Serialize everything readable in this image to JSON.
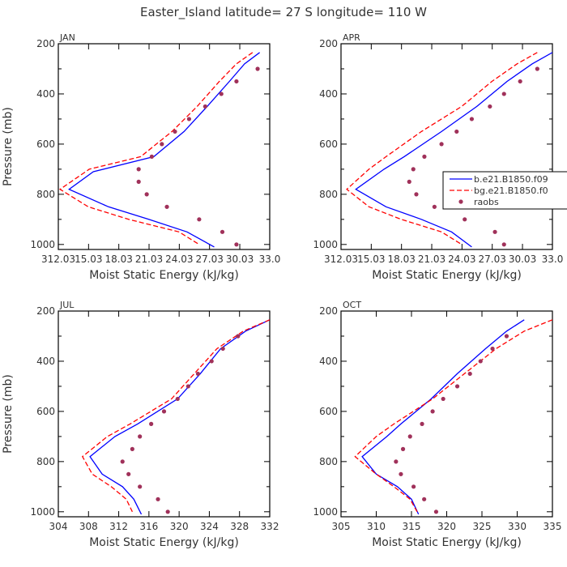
{
  "figure_title": "Easter_Island   latitude= 27 S longitude= 110 W",
  "colors": {
    "model": "#0000ff",
    "model_bg": "#ff0000",
    "obs": "#a0315a",
    "axis": "#000000",
    "text": "#333333"
  },
  "chart_data": [
    {
      "type": "line",
      "month": "JAN",
      "xlabel": "Moist Static Energy (kJ/kg)",
      "ylabel": "Pressure (mb)",
      "xlim": [
        312.03,
        333.0
      ],
      "ylim": [
        1020,
        200
      ],
      "xticks": [
        312.03,
        315.03,
        318.03,
        321.03,
        324.03,
        327.03,
        330.03,
        333.0
      ],
      "xtick_labels": [
        "312.03",
        "15.03",
        "18.03",
        "21.03",
        "24.03",
        "27.03",
        "30.03",
        "33.0"
      ],
      "yticks": [
        200,
        400,
        600,
        800,
        1000
      ],
      "ytick_labels": [
        "200",
        "400",
        "600",
        "800",
        "1000"
      ],
      "show_ylabel": true,
      "legend": null,
      "series": [
        {
          "name": "b.e21.B1850.f09",
          "style": "solid",
          "color": "#0000ff",
          "pressure": [
            235,
            280,
            350,
            450,
            550,
            650,
            710,
            780,
            850,
            900,
            950,
            1010
          ],
          "values": [
            332.0,
            330.5,
            329.0,
            326.8,
            324.5,
            321.5,
            315.5,
            313.1,
            317.0,
            321.0,
            324.8,
            327.5
          ]
        },
        {
          "name": "bg.e21.B1850.f0",
          "style": "dashed",
          "color": "#ff0000",
          "pressure": [
            235,
            280,
            350,
            450,
            550,
            650,
            700,
            780,
            850,
            900,
            950,
            1000
          ],
          "values": [
            331.3,
            329.7,
            328.0,
            325.8,
            323.3,
            320.2,
            315.1,
            312.2,
            315.0,
            319.0,
            324.0,
            326.0
          ]
        },
        {
          "name": "raobs",
          "style": "dots",
          "color": "#a0315a",
          "pressure": [
            300,
            350,
            400,
            450,
            500,
            550,
            600,
            650,
            700,
            750,
            800,
            850,
            900,
            950,
            1000
          ],
          "values": [
            331.8,
            329.7,
            328.2,
            326.6,
            325.0,
            323.6,
            322.3,
            321.3,
            320.0,
            320.0,
            320.8,
            322.8,
            326.0,
            328.3,
            329.7
          ]
        }
      ]
    },
    {
      "type": "line",
      "month": "APR",
      "xlabel": "Moist Static Energy (kJ/kg)",
      "ylabel": "",
      "xlim": [
        312.03,
        333.0
      ],
      "ylim": [
        1020,
        200
      ],
      "xticks": [
        312.03,
        315.03,
        318.03,
        321.03,
        324.03,
        327.03,
        330.03,
        333.0
      ],
      "xtick_labels": [
        "312.03",
        "15.03",
        "18.03",
        "21.03",
        "24.03",
        "27.03",
        "30.03",
        "33.0"
      ],
      "yticks": [
        200,
        400,
        600,
        800,
        1000
      ],
      "ytick_labels": [
        "200",
        "400",
        "600",
        "800",
        "1000"
      ],
      "show_ylabel": false,
      "legend": {
        "placement": "right",
        "entries": [
          "b.e21.B1850.f09",
          "bg.e21.B1850.f0",
          "raobs"
        ]
      },
      "series": [
        {
          "name": "b.e21.B1850.f09",
          "style": "solid",
          "color": "#0000ff",
          "pressure": [
            235,
            280,
            350,
            450,
            550,
            650,
            700,
            780,
            850,
            900,
            950,
            1010
          ],
          "values": [
            333.0,
            331.0,
            328.5,
            325.5,
            322.0,
            318.3,
            316.3,
            313.5,
            316.5,
            320.0,
            323.0,
            325.0
          ]
        },
        {
          "name": "bg.e21.B1850.f0",
          "style": "dashed",
          "color": "#ff0000",
          "pressure": [
            235,
            280,
            350,
            450,
            550,
            650,
            700,
            780,
            850,
            900,
            950,
            1000
          ],
          "values": [
            331.5,
            329.5,
            327.0,
            324.0,
            320.0,
            316.5,
            314.8,
            312.6,
            314.8,
            318.0,
            322.0,
            324.0
          ]
        },
        {
          "name": "raobs",
          "style": "dots",
          "color": "#a0315a",
          "pressure": [
            300,
            350,
            400,
            450,
            500,
            550,
            600,
            650,
            700,
            750,
            800,
            850,
            900,
            950,
            1000
          ],
          "values": [
            331.5,
            329.8,
            328.2,
            326.8,
            325.0,
            323.5,
            322.0,
            320.3,
            319.2,
            318.8,
            319.5,
            321.3,
            324.3,
            327.3,
            328.2
          ]
        }
      ]
    },
    {
      "type": "line",
      "month": "JUL",
      "xlabel": "Moist Static Energy (kJ/kg)",
      "ylabel": "Pressure (mb)",
      "xlim": [
        304,
        332
      ],
      "ylim": [
        1020,
        200
      ],
      "xticks": [
        304,
        308,
        312,
        316,
        320,
        324,
        328,
        332
      ],
      "xtick_labels": [
        "304",
        "308",
        "312",
        "316",
        "320",
        "324",
        "328",
        "332"
      ],
      "yticks": [
        200,
        400,
        600,
        800,
        1000
      ],
      "ytick_labels": [
        "200",
        "400",
        "600",
        "800",
        "1000"
      ],
      "show_ylabel": true,
      "legend": null,
      "series": [
        {
          "name": "b.e21.B1850.f09",
          "style": "solid",
          "color": "#0000ff",
          "pressure": [
            235,
            280,
            350,
            450,
            550,
            650,
            700,
            780,
            850,
            900,
            950,
            1010
          ],
          "values": [
            332.0,
            328.8,
            325.5,
            322.8,
            319.8,
            314.5,
            311.5,
            308.2,
            309.8,
            312.5,
            314.0,
            315.0
          ]
        },
        {
          "name": "bg.e21.B1850.f0",
          "style": "dashed",
          "color": "#ff0000",
          "pressure": [
            235,
            280,
            350,
            450,
            550,
            650,
            700,
            780,
            850,
            900,
            950,
            1000
          ],
          "values": [
            332.0,
            328.5,
            325.0,
            322.0,
            319.0,
            313.5,
            310.5,
            307.2,
            308.5,
            311.0,
            313.0,
            313.8
          ]
        },
        {
          "name": "raobs",
          "style": "dots",
          "color": "#a0315a",
          "pressure": [
            300,
            350,
            400,
            450,
            500,
            550,
            600,
            650,
            700,
            750,
            800,
            850,
            900,
            950,
            1000
          ],
          "values": [
            327.8,
            325.8,
            324.3,
            322.5,
            321.2,
            319.8,
            318.0,
            316.3,
            314.8,
            313.8,
            312.5,
            313.3,
            314.8,
            317.2,
            318.5
          ]
        }
      ]
    },
    {
      "type": "line",
      "month": "OCT",
      "xlabel": "Moist Static Energy (kJ/kg)",
      "ylabel": "",
      "xlim": [
        305,
        335
      ],
      "ylim": [
        1020,
        200
      ],
      "xticks": [
        305,
        310,
        315,
        320,
        325,
        330,
        335
      ],
      "xtick_labels": [
        "305",
        "310",
        "315",
        "320",
        "325",
        "330",
        "335"
      ],
      "yticks": [
        200,
        400,
        600,
        800,
        1000
      ],
      "ytick_labels": [
        "200",
        "400",
        "600",
        "800",
        "1000"
      ],
      "show_ylabel": false,
      "legend": null,
      "series": [
        {
          "name": "b.e21.B1850.f09",
          "style": "solid",
          "color": "#0000ff",
          "pressure": [
            235,
            280,
            350,
            450,
            550,
            650,
            700,
            780,
            850,
            900,
            950,
            1010
          ],
          "values": [
            331.0,
            328.5,
            325.5,
            321.5,
            317.8,
            313.5,
            311.5,
            308.0,
            310.0,
            313.0,
            315.0,
            316.0
          ]
        },
        {
          "name": "bg.e21.B1850.f0",
          "style": "dashed",
          "color": "#ff0000",
          "pressure": [
            235,
            280,
            350,
            450,
            550,
            650,
            700,
            780,
            850,
            900,
            950,
            1000
          ],
          "values": [
            335.0,
            331.0,
            327.0,
            322.5,
            318.0,
            312.5,
            310.0,
            307.0,
            310.0,
            312.5,
            314.8,
            315.8
          ]
        },
        {
          "name": "raobs",
          "style": "dots",
          "color": "#a0315a",
          "pressure": [
            300,
            350,
            400,
            450,
            500,
            550,
            600,
            650,
            700,
            750,
            800,
            850,
            900,
            950,
            1000
          ],
          "values": [
            328.5,
            326.5,
            324.8,
            323.3,
            321.5,
            319.5,
            318.0,
            316.5,
            314.8,
            313.8,
            312.8,
            313.5,
            315.3,
            316.8,
            318.5
          ]
        }
      ]
    }
  ]
}
